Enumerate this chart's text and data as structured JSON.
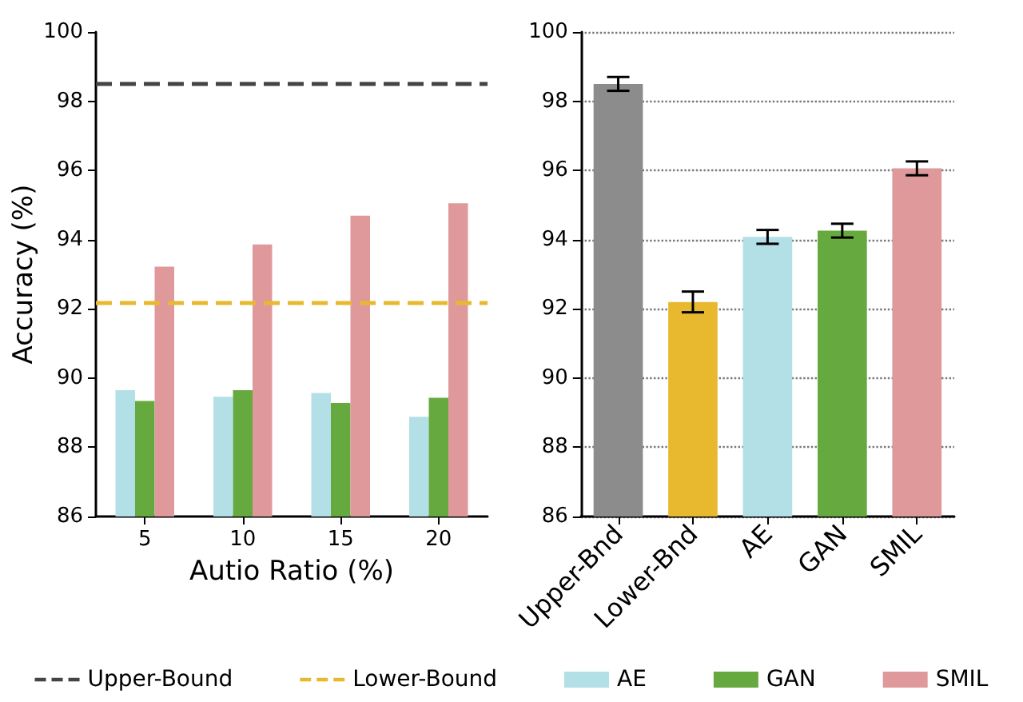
{
  "chart_data": [
    {
      "type": "bar",
      "xlabel": "Autio Ratio (%)",
      "ylabel": "Accuracy (%)",
      "categories": [
        "5",
        "10",
        "15",
        "20"
      ],
      "series": [
        {
          "name": "AE",
          "color": "#b3dfe6",
          "values": [
            89.65,
            89.46,
            89.57,
            88.88
          ]
        },
        {
          "name": "GAN",
          "color": "#66aa3f",
          "values": [
            89.34,
            89.65,
            89.28,
            89.43
          ]
        },
        {
          "name": "SMIL",
          "color": "#e0999b",
          "values": [
            93.22,
            93.86,
            94.69,
            95.05
          ]
        }
      ],
      "ref_lines": [
        {
          "axis": "y",
          "value": 98.5,
          "label": "Upper-Bound",
          "color": "#444444",
          "line_style": "dashed"
        },
        {
          "axis": "y",
          "value": 92.2,
          "label": "Lower-Bound",
          "color": "#e8b92e",
          "line_style": "dashed"
        }
      ],
      "ylim": [
        86,
        100
      ],
      "yticks": [
        86,
        88,
        90,
        92,
        94,
        96,
        98,
        100
      ],
      "legend": "bottom"
    },
    {
      "type": "bar",
      "categories": [
        "Upper-Bnd",
        "Lower-Bnd",
        "AE",
        "GAN",
        "SMIL"
      ],
      "values": [
        98.5,
        92.2,
        94.08,
        94.26,
        96.06
      ],
      "colors": [
        "#8c8c8c",
        "#e8b92e",
        "#b3dfe6",
        "#66aa3f",
        "#e0999b"
      ],
      "errors": [
        0.2,
        0.3,
        0.2,
        0.2,
        0.2
      ],
      "ylim": [
        86,
        100
      ],
      "yticks": [
        86,
        88,
        90,
        92,
        94,
        96,
        98,
        100
      ],
      "grid": "y"
    }
  ]
}
